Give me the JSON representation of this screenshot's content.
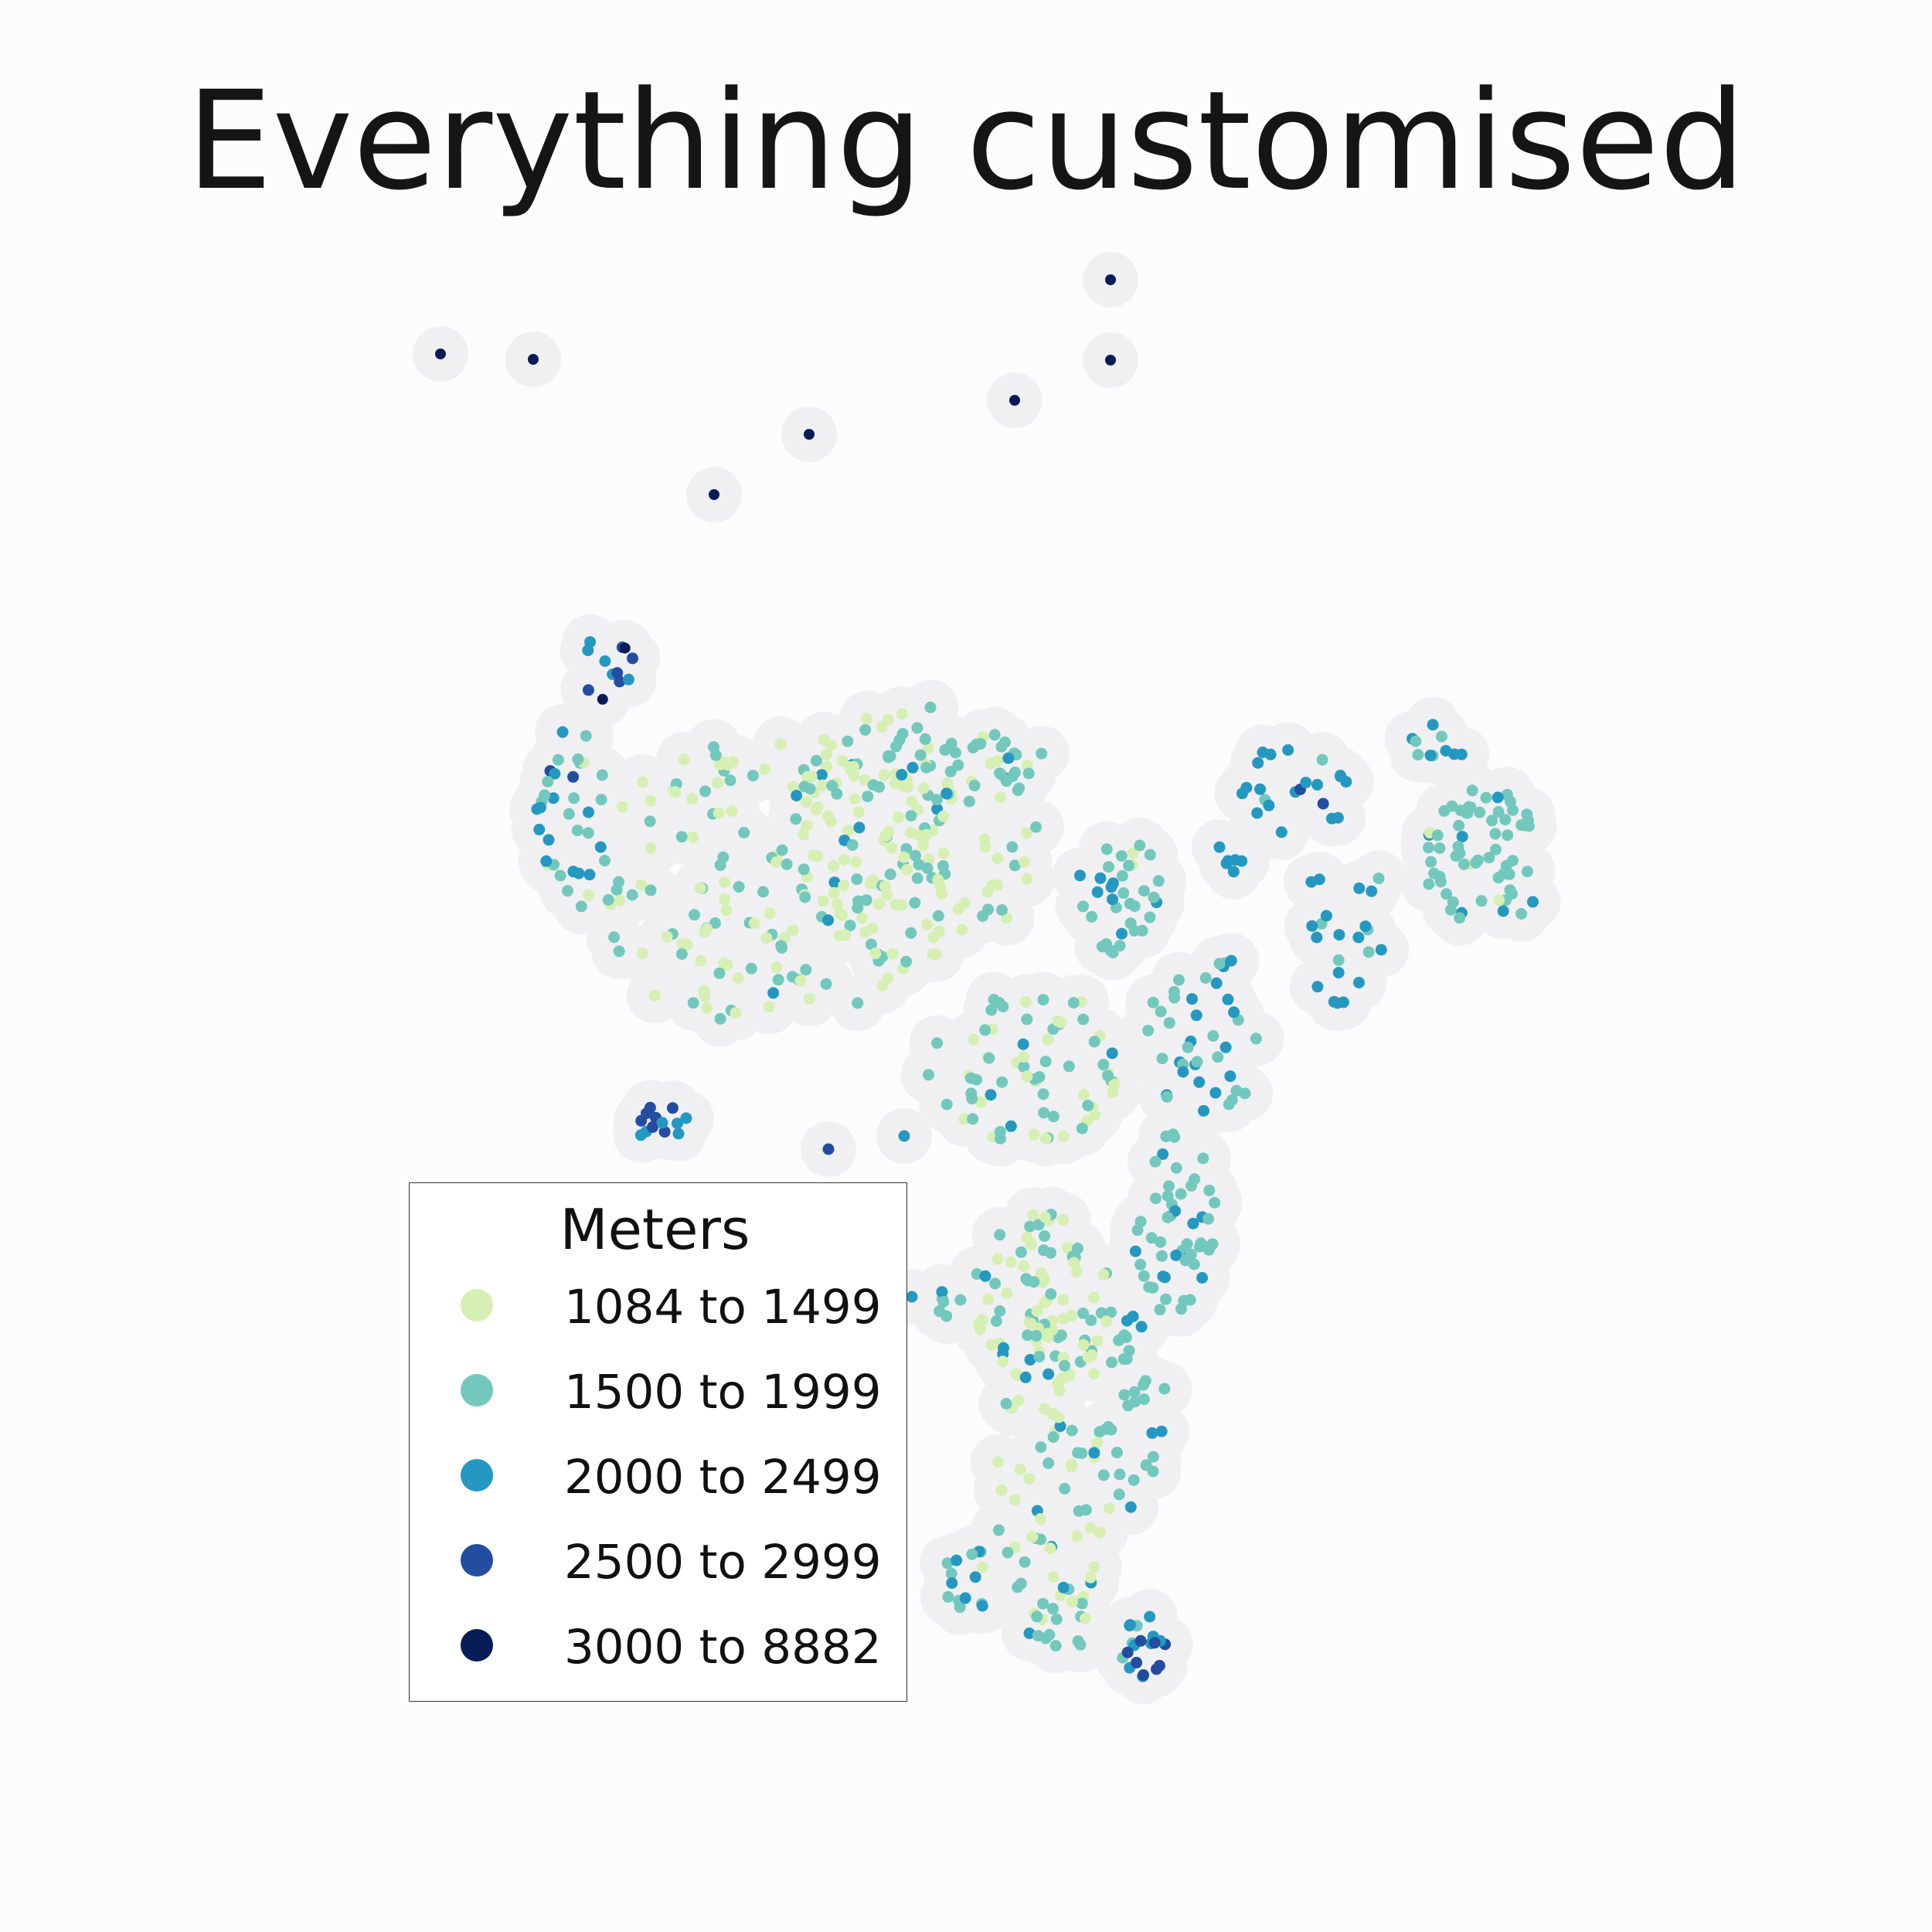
{
  "title": "Everything customised",
  "legend": {
    "title": "Meters",
    "items": [
      {
        "label": "1084 to 1499",
        "color": "#d6efb3"
      },
      {
        "label": "1500 to 1999",
        "color": "#73c8bd"
      },
      {
        "label": "2000 to 2499",
        "color": "#2498c1"
      },
      {
        "label": "2500 to 2999",
        "color": "#234da0"
      },
      {
        "label": "3000 to 8882",
        "color": "#081d58"
      }
    ]
  },
  "map_style": {
    "buffer_color": "#f0f0f2",
    "point_classes": 5
  }
}
